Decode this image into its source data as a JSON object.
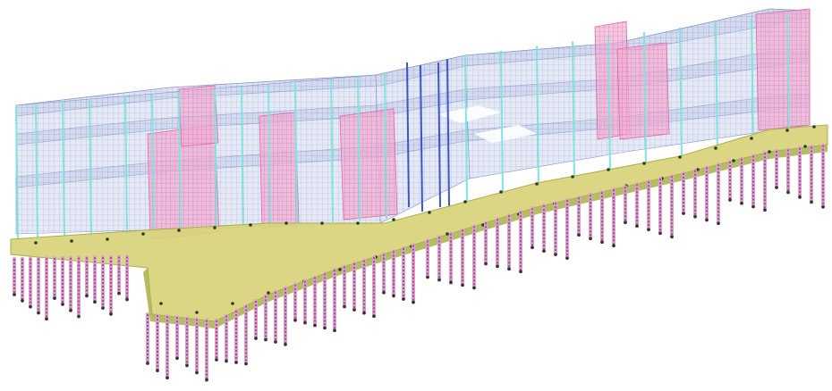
{
  "view": {
    "type": "3d-structural-finite-element-model",
    "projection": "isometric"
  },
  "model": {
    "upper_floor_count": 3,
    "colors": {
      "background": "#ffffff",
      "slab_mesh": "#b9c4df",
      "mesh_line": "#8a96c8",
      "shear_wall": "#ee9cc8",
      "shear_wall_line": "#d96aa8",
      "column": "#7fe3e0",
      "column_accent": "#3a57c8",
      "podium_slab": "#d8d27a",
      "podium_edge": "#a9b04a",
      "pile": "#e59ad8",
      "pile_core": "#4d4a3a",
      "node": "#2f3a2a"
    },
    "components": [
      "slab-mesh",
      "shear-wall",
      "column",
      "podium-slab",
      "pile"
    ]
  }
}
